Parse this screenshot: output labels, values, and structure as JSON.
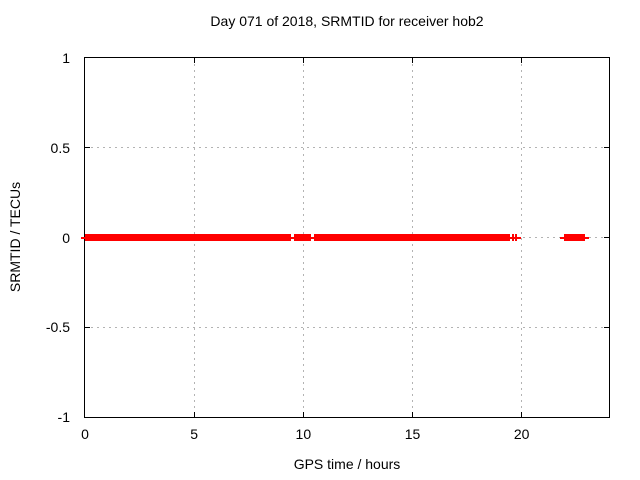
{
  "chart_data": {
    "type": "scatter",
    "title": "Day 071 of 2018, SRMTID for receiver hob2",
    "xlabel": "GPS time / hours",
    "ylabel": "SRMTID / TECUs",
    "xlim": [
      0,
      24
    ],
    "ylim": [
      -1,
      1
    ],
    "x_ticks": [
      0,
      5,
      10,
      15,
      20
    ],
    "x_tick_labels": [
      "0",
      "5",
      "10",
      "15",
      "20"
    ],
    "y_ticks": [
      1,
      0.5,
      0,
      -0.5,
      -1
    ],
    "y_tick_labels": [
      "1",
      "0.5",
      "0",
      "-0.5",
      "-1"
    ],
    "x_grid_ticks": [
      5,
      10,
      15,
      20
    ],
    "y_grid_ticks": [
      0.5,
      0,
      -0.5
    ],
    "grid": true,
    "legend_position": "none",
    "series": [
      {
        "name": "SRMTID",
        "marker": "+",
        "color": "#ff0000",
        "y_value": 0,
        "segments_x_hours": [
          [
            0.0,
            9.43
          ],
          [
            9.55,
            10.35
          ],
          [
            10.47,
            19.47
          ],
          [
            21.95,
            22.9
          ]
        ],
        "isolated_x_hours": [
          19.62,
          19.75
        ]
      }
    ],
    "colors": {
      "border": "#000000",
      "grid": "#b3b3b3",
      "background": "#ffffff",
      "text": "#000000"
    }
  }
}
